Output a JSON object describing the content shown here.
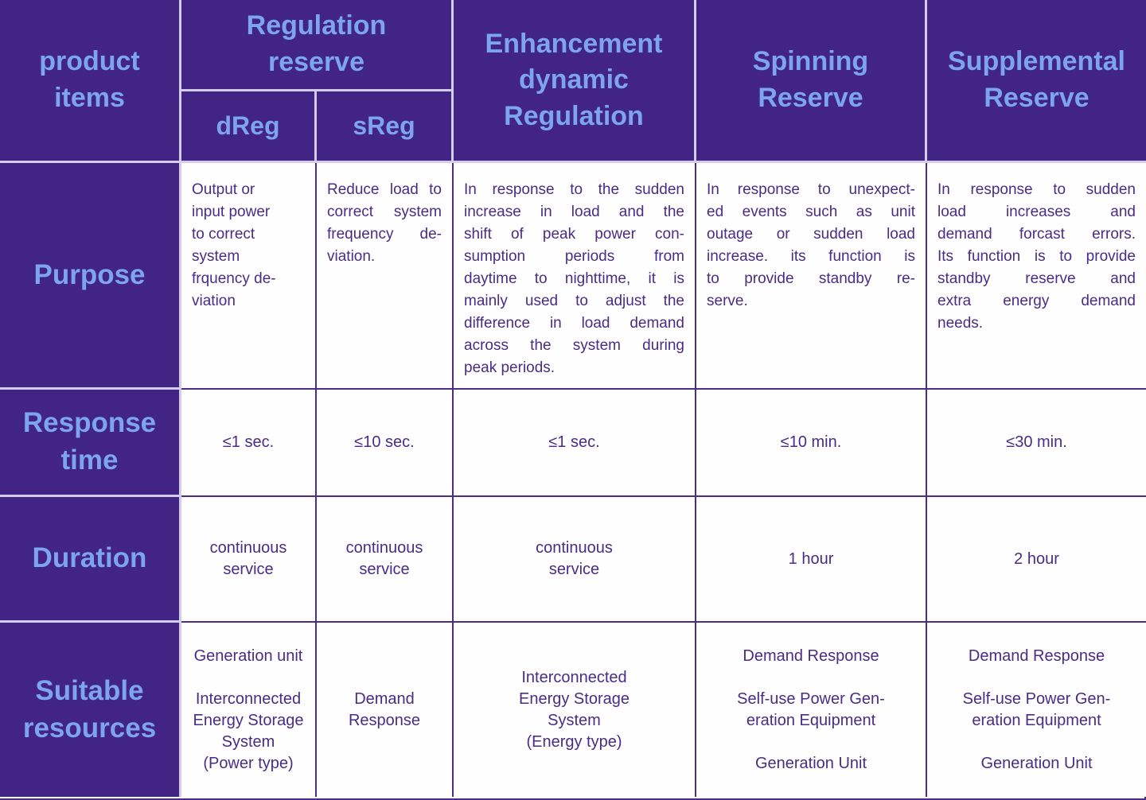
{
  "colors": {
    "header_background": "#412484",
    "header_label_text": "#7da4ef",
    "body_text": "#4a2c85",
    "light_grid_line": "#d3cde9",
    "purple_grid_line": "#4b2d87",
    "cell_background": "#fefeff"
  },
  "header": {
    "product_items": "product\nitems",
    "regulation_reserve": "Regulation\nreserve",
    "dreg": "dReg",
    "sreg": "sReg",
    "enhancement": "Enhancement\ndynamic\nRegulation",
    "spinning": "Spinning\nReserve",
    "supplemental": "Supplemental\nReserve"
  },
  "purpose": {
    "label": "Purpose",
    "dreg_lines": [
      "Output or",
      "input power",
      "to correct",
      "system",
      "frquency de-",
      "viation"
    ],
    "sreg_lines": [
      "Reduce load to",
      "correct system",
      "frequency de-",
      "viation."
    ],
    "enhancement_lines": [
      "In response to the sudden",
      "increase in load and the",
      "shift of peak power con-",
      "sumption periods from",
      "daytime to nighttime, it is",
      "mainly used to adjust the",
      "difference in load demand",
      "across the system during",
      "peak periods."
    ],
    "spinning_lines": [
      "In response to unexpect-",
      "ed events such as unit",
      "outage or sudden load",
      "increase. its function is",
      "to provide standby re-",
      "serve."
    ],
    "supplemental_lines": [
      "In response to sudden",
      "load increases and",
      "demand forcast errors.",
      "Its function is to provide",
      "standby reserve and",
      "extra energy demand",
      "needs."
    ]
  },
  "response_time": {
    "label": "Response\ntime",
    "dreg": "≤1 sec.",
    "sreg": "≤10 sec.",
    "enhancement": "≤1 sec.",
    "spinning": "≤10 min.",
    "supplemental": "≤30 min."
  },
  "duration": {
    "label": "Duration",
    "dreg_lines": [
      "continuous",
      "service"
    ],
    "sreg_lines": [
      "continuous",
      "service"
    ],
    "enhancement_lines": [
      "continuous",
      "service"
    ],
    "spinning": "1 hour",
    "supplemental": "2 hour"
  },
  "suitable_resources": {
    "label": "Suitable\nresources",
    "dreg_lines": [
      "Generation unit",
      "",
      "Interconnected",
      "Energy Storage",
      "System",
      "(Power type)"
    ],
    "sreg_lines": [
      "Demand",
      "Response"
    ],
    "enhancement_lines": [
      "Interconnected",
      "Energy Storage",
      "System",
      "(Energy type)"
    ],
    "spinning_lines": [
      "Demand Response",
      "",
      "Self-use Power Gen-",
      "eration Equipment",
      "",
      "Generation Unit"
    ],
    "supplemental_lines": [
      "Demand Response",
      "",
      "Self-use Power Gen-",
      "eration Equipment",
      "",
      "Generation Unit"
    ]
  }
}
